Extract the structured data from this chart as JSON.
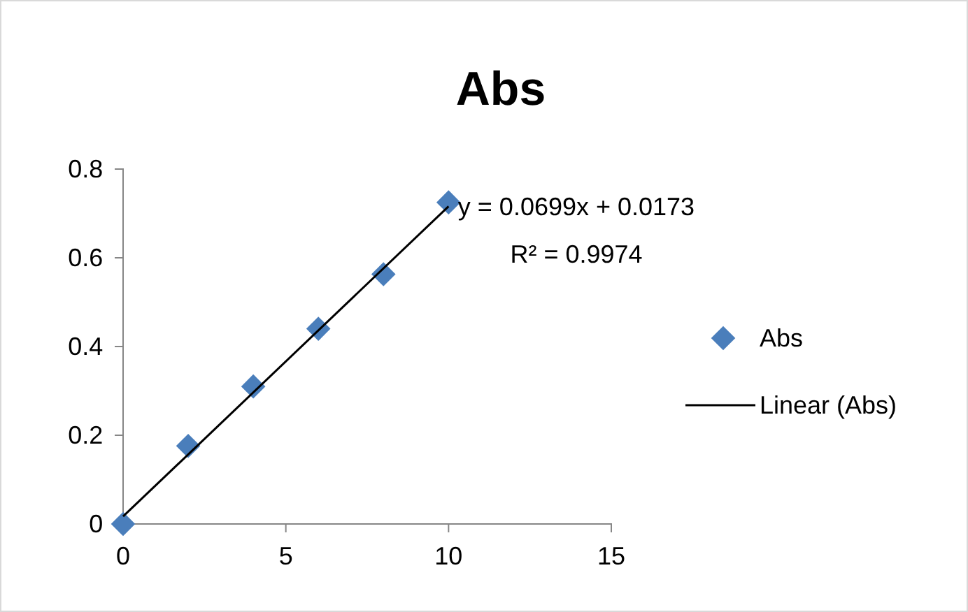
{
  "chart_data": {
    "type": "scatter",
    "title": "Abs",
    "x": [
      0,
      2,
      4,
      6,
      8,
      10
    ],
    "series": [
      {
        "name": "Abs",
        "color": "#4a7ebb",
        "marker": "diamond",
        "values": [
          0,
          0.176,
          0.31,
          0.44,
          0.563,
          0.725
        ]
      },
      {
        "name": "Linear (Abs)",
        "type": "line",
        "color": "#000000",
        "x": [
          0,
          10
        ],
        "values": [
          0.017,
          0.716
        ],
        "marker": "none",
        "line_style": "solid"
      }
    ],
    "xlim": [
      0,
      15
    ],
    "xticks": [
      0,
      5,
      10,
      15
    ],
    "ylim": [
      0,
      0.8
    ],
    "yticks": [
      0,
      0.2,
      0.4,
      0.6,
      0.8
    ],
    "grid": false,
    "legend": "right",
    "annotations": [
      "y = 0.0699x + 0.0173",
      "R² = 0.9974"
    ]
  }
}
